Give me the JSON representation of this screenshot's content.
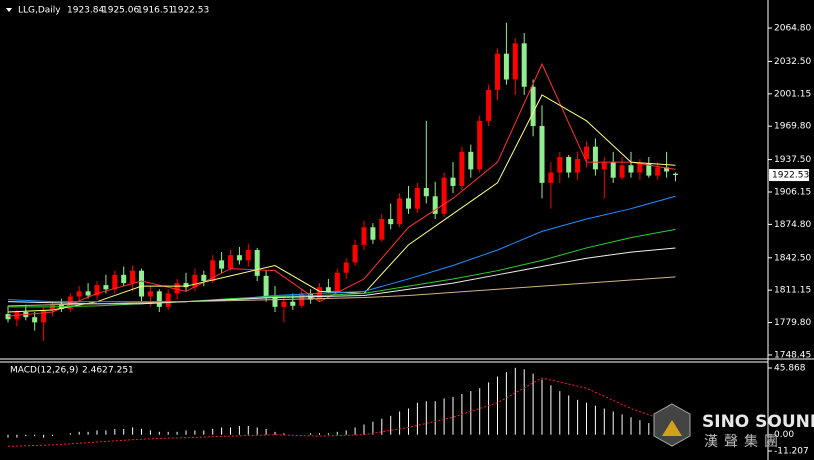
{
  "chart_data": [
    {
      "type": "candlestick",
      "title": "LLG,Daily",
      "up_color": "#ff0000",
      "down_color": "#90ee90",
      "ylim": [
        1745.5,
        2090
      ],
      "yticks": [
        {
          "value": 2064.8,
          "label": "2064.80"
        },
        {
          "value": 2032.5,
          "label": "2032.50"
        },
        2001.15,
        {
          "value": 1969.8,
          "label": "1969.80"
        },
        {
          "value": 1937.5,
          "label": "1937.50"
        },
        1906.15,
        {
          "value": 1874.8,
          "label": "1874.80"
        },
        {
          "value": 1842.5,
          "label": "1842.50"
        },
        1811.15,
        {
          "value": 1779.8,
          "label": "1779.80"
        },
        1748.45
      ],
      "candles": [
        [
          1788,
          1796,
          1780,
          1783
        ],
        [
          1783,
          1792,
          1776,
          1790
        ],
        [
          1790,
          1797,
          1782,
          1785
        ],
        [
          1785,
          1790,
          1772,
          1780
        ],
        [
          1780,
          1795,
          1762,
          1792
        ],
        [
          1792,
          1800,
          1786,
          1797
        ],
        [
          1797,
          1803,
          1790,
          1793
        ],
        [
          1793,
          1808,
          1790,
          1805
        ],
        [
          1805,
          1815,
          1800,
          1810
        ],
        [
          1810,
          1818,
          1803,
          1806
        ],
        [
          1806,
          1820,
          1802,
          1816
        ],
        [
          1816,
          1826,
          1808,
          1812
        ],
        [
          1812,
          1830,
          1808,
          1826
        ],
        [
          1826,
          1834,
          1815,
          1818
        ],
        [
          1818,
          1835,
          1810,
          1830
        ],
        [
          1830,
          1832,
          1800,
          1805
        ],
        [
          1805,
          1815,
          1795,
          1810
        ],
        [
          1810,
          1812,
          1790,
          1795
        ],
        [
          1795,
          1812,
          1792,
          1808
        ],
        [
          1808,
          1822,
          1802,
          1818
        ],
        [
          1818,
          1828,
          1810,
          1814
        ],
        [
          1814,
          1832,
          1810,
          1826
        ],
        [
          1826,
          1830,
          1815,
          1820
        ],
        [
          1820,
          1845,
          1818,
          1840
        ],
        [
          1840,
          1848,
          1828,
          1832
        ],
        [
          1832,
          1850,
          1830,
          1845
        ],
        [
          1845,
          1853,
          1836,
          1840
        ],
        [
          1840,
          1856,
          1834,
          1850
        ],
        [
          1850,
          1852,
          1820,
          1825
        ],
        [
          1825,
          1830,
          1800,
          1805
        ],
        [
          1805,
          1815,
          1790,
          1795
        ],
        [
          1795,
          1805,
          1780,
          1800
        ],
        [
          1800,
          1808,
          1792,
          1796
        ],
        [
          1796,
          1812,
          1794,
          1808
        ],
        [
          1808,
          1812,
          1798,
          1802
        ],
        [
          1802,
          1818,
          1800,
          1814
        ],
        [
          1814,
          1822,
          1808,
          1810
        ],
        [
          1810,
          1832,
          1808,
          1828
        ],
        [
          1828,
          1842,
          1822,
          1838
        ],
        [
          1838,
          1860,
          1835,
          1855
        ],
        [
          1855,
          1878,
          1850,
          1872
        ],
        [
          1872,
          1876,
          1856,
          1860
        ],
        [
          1860,
          1885,
          1858,
          1880
        ],
        [
          1880,
          1895,
          1870,
          1875
        ],
        [
          1875,
          1905,
          1872,
          1900
        ],
        [
          1900,
          1912,
          1885,
          1890
        ],
        [
          1890,
          1915,
          1886,
          1910
        ],
        [
          1910,
          1975,
          1895,
          1902
        ],
        [
          1902,
          1916,
          1880,
          1885
        ],
        [
          1885,
          1925,
          1882,
          1920
        ],
        [
          1920,
          1935,
          1905,
          1912
        ],
        [
          1912,
          1950,
          1908,
          1945
        ],
        [
          1945,
          1952,
          1920,
          1928
        ],
        [
          1928,
          1980,
          1925,
          1975
        ],
        [
          1975,
          2010,
          1970,
          2005
        ],
        [
          2005,
          2045,
          1995,
          2040
        ],
        [
          2040,
          2070,
          2010,
          2015
        ],
        [
          2015,
          2055,
          2000,
          2050
        ],
        [
          2050,
          2060,
          2000,
          2008
        ],
        [
          2008,
          2015,
          1960,
          1970
        ],
        [
          1970,
          1990,
          1900,
          1915
        ],
        [
          1915,
          1935,
          1890,
          1925
        ],
        [
          1925,
          1945,
          1915,
          1940
        ],
        [
          1940,
          1942,
          1920,
          1925
        ],
        [
          1925,
          1945,
          1918,
          1938
        ],
        [
          1938,
          1955,
          1930,
          1950
        ],
        [
          1950,
          1958,
          1922,
          1928
        ],
        [
          1928,
          1940,
          1900,
          1935
        ],
        [
          1935,
          1945,
          1915,
          1920
        ],
        [
          1920,
          1940,
          1918,
          1932
        ],
        [
          1932,
          1945,
          1920,
          1925
        ],
        [
          1925,
          1938,
          1918,
          1934
        ],
        [
          1934,
          1940,
          1920,
          1922
        ],
        [
          1922,
          1935,
          1918,
          1930
        ],
        [
          1930,
          1945,
          1920,
          1926
        ],
        [
          1923.84,
          1925.06,
          1916.51,
          1922.53
        ]
      ],
      "ma_x": [
        0,
        5,
        10,
        15,
        20,
        25,
        30,
        35,
        40,
        45,
        50,
        55,
        60,
        65,
        70,
        75
      ],
      "series": [
        {
          "color": "#ff3030",
          "values": [
            1786,
            1790,
            1808,
            1820,
            1810,
            1832,
            1830,
            1800,
            1822,
            1872,
            1900,
            1935,
            2030,
            1935,
            1935,
            1928
          ]
        },
        {
          "color": "#ffff80",
          "values": [
            1790,
            1792,
            1800,
            1815,
            1815,
            1825,
            1835,
            1810,
            1808,
            1855,
            1885,
            1915,
            2000,
            1975,
            1935,
            1932
          ]
        },
        {
          "color": "#1e90ff",
          "values": [
            1802,
            1800,
            1800,
            1800,
            1800,
            1802,
            1806,
            1808,
            1810,
            1822,
            1835,
            1850,
            1868,
            1880,
            1890,
            1902
          ]
        },
        {
          "color": "#32cd32",
          "values": [
            1795,
            1795,
            1796,
            1798,
            1800,
            1803,
            1805,
            1806,
            1808,
            1815,
            1822,
            1830,
            1840,
            1852,
            1862,
            1870
          ]
        },
        {
          "color": "#f0f0f0",
          "values": [
            1800,
            1799,
            1798,
            1798,
            1800,
            1802,
            1804,
            1805,
            1806,
            1812,
            1818,
            1826,
            1834,
            1842,
            1848,
            1852
          ]
        },
        {
          "color": "#d2b48c",
          "values": [
            1796,
            1797,
            1798,
            1799,
            1800,
            1801,
            1802,
            1803,
            1804,
            1806,
            1809,
            1812,
            1815,
            1818,
            1821,
            1824
          ]
        }
      ]
    },
    {
      "type": "macd",
      "title": "MACD(12,26,9)",
      "ylim": [
        -16,
        50
      ],
      "yticks": [
        45.868,
        {
          "value": 0,
          "label": "0.00"
        },
        -11.207
      ],
      "histogram": {
        "color": "#ffffff",
        "values": [
          -2,
          -2,
          -1,
          -1,
          -2,
          -1,
          0,
          1,
          2,
          2,
          3,
          3,
          4,
          4,
          5,
          4,
          3,
          2,
          2,
          2,
          3,
          3,
          3,
          4,
          5,
          5,
          6,
          6,
          5,
          4,
          2,
          1,
          0,
          0,
          1,
          1,
          1,
          2,
          3,
          5,
          7,
          9,
          11,
          13,
          16,
          18,
          22,
          23,
          23,
          25,
          26,
          28,
          30,
          32,
          36,
          40,
          43,
          46,
          45,
          42,
          38,
          34,
          30,
          27,
          24,
          22,
          20,
          18,
          16,
          14,
          12,
          10,
          8,
          6,
          4,
          2.462
        ]
      },
      "signal_x": [
        0,
        5,
        10,
        15,
        20,
        25,
        30,
        35,
        40,
        45,
        50,
        55,
        60,
        65,
        70,
        75
      ],
      "signal": {
        "color": "#ff2020",
        "values": [
          -8,
          -7,
          -5,
          -3,
          -2,
          -1,
          0,
          -1,
          0,
          5,
          12,
          22,
          39,
          32,
          18,
          7.251
        ]
      }
    }
  ],
  "logo": {
    "name": "SINO SOUND",
    "subtitle": "漢聲集團"
  }
}
